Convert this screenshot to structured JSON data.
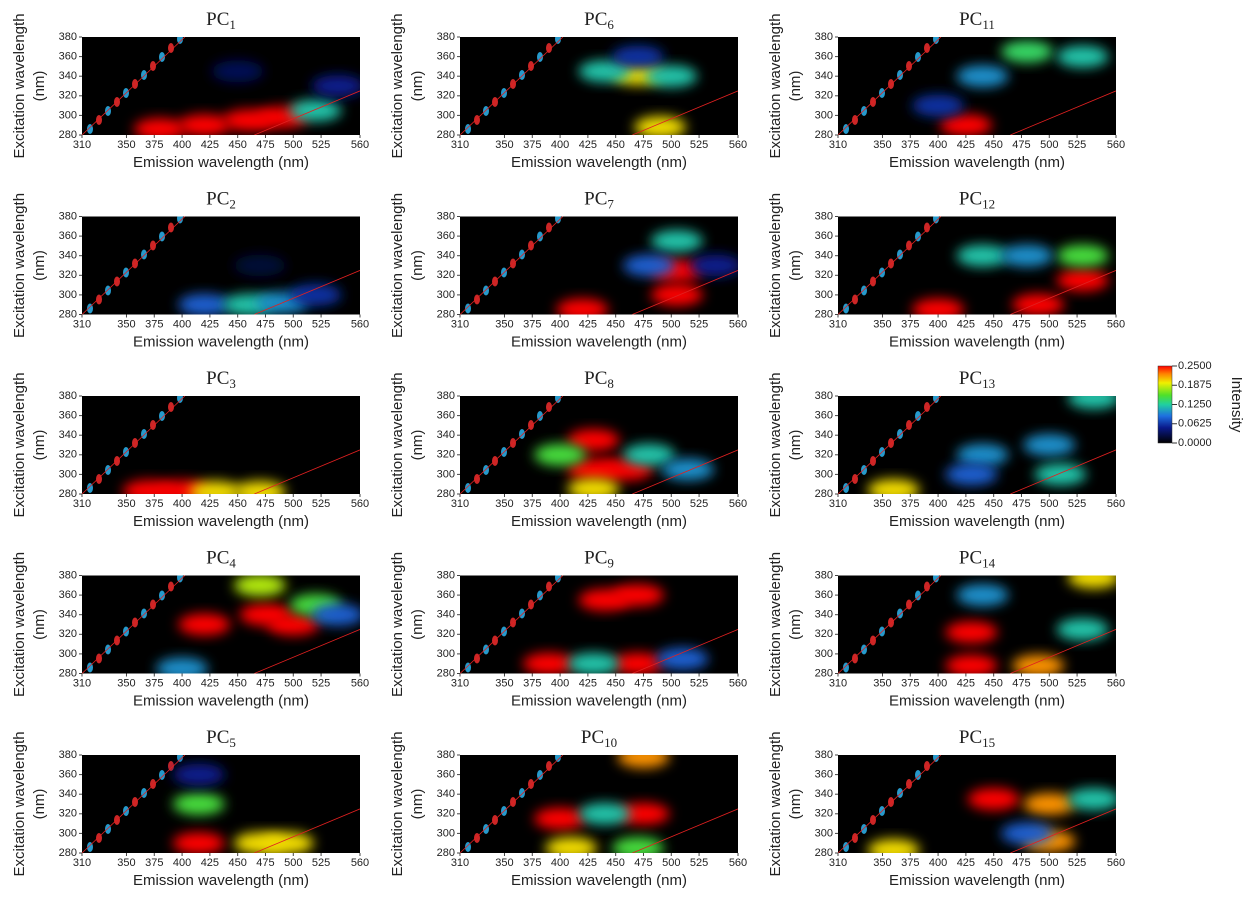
{
  "chart_data": [
    {
      "type": "heatmap",
      "title": "PC",
      "title_sub": "1",
      "xlabel": "Emission wavelength (nm)",
      "ylabel": "Excitation wavelength",
      "ylabel_unit": "(nm)",
      "xlim": [
        310,
        560
      ],
      "ylim": [
        280,
        380
      ],
      "xticks": [
        310,
        350,
        375,
        400,
        425,
        450,
        475,
        500,
        525,
        560
      ],
      "yticks": [
        280,
        300,
        320,
        340,
        360,
        380
      ],
      "x": [
        380,
        420,
        460,
        490,
        520,
        450,
        540
      ],
      "y": [
        286,
        290,
        295,
        298,
        305,
        345,
        330
      ],
      "values": [
        0.25,
        0.25,
        0.25,
        0.25,
        0.12,
        0.03,
        0.05
      ]
    },
    {
      "type": "heatmap",
      "title": "PC",
      "title_sub": "2",
      "xlabel": "Emission wavelength (nm)",
      "ylabel": "Excitation wavelength",
      "ylabel_unit": "(nm)",
      "xlim": [
        310,
        560
      ],
      "ylim": [
        280,
        380
      ],
      "xticks": [
        310,
        350,
        375,
        400,
        425,
        450,
        475,
        500,
        525,
        560
      ],
      "yticks": [
        280,
        300,
        320,
        340,
        360,
        380
      ],
      "x": [
        420,
        460,
        490,
        520,
        470
      ],
      "y": [
        290,
        290,
        292,
        300,
        330
      ],
      "values": [
        0.08,
        0.12,
        0.1,
        0.06,
        0.02
      ]
    },
    {
      "type": "heatmap",
      "title": "PC",
      "title_sub": "3",
      "xlabel": "Emission wavelength (nm)",
      "ylabel": "Excitation wavelength",
      "ylabel_unit": "(nm)",
      "xlim": [
        310,
        560
      ],
      "ylim": [
        280,
        380
      ],
      "xticks": [
        310,
        350,
        375,
        400,
        425,
        450,
        475,
        500,
        525,
        560
      ],
      "yticks": [
        280,
        300,
        320,
        340,
        360,
        380
      ],
      "x": [
        370,
        400,
        430,
        470
      ],
      "y": [
        283,
        283,
        282,
        282
      ],
      "values": [
        0.25,
        0.25,
        0.2,
        0.2
      ]
    },
    {
      "type": "heatmap",
      "title": "PC",
      "title_sub": "4",
      "xlabel": "Emission wavelength (nm)",
      "ylabel": "Excitation wavelength",
      "ylabel_unit": "(nm)",
      "xlim": [
        310,
        560
      ],
      "ylim": [
        280,
        380
      ],
      "xticks": [
        310,
        350,
        375,
        400,
        425,
        450,
        475,
        500,
        525,
        560
      ],
      "yticks": [
        280,
        300,
        320,
        340,
        360,
        380
      ],
      "x": [
        420,
        475,
        500,
        520,
        470,
        540,
        400
      ],
      "y": [
        330,
        340,
        330,
        350,
        370,
        340,
        285
      ],
      "values": [
        0.25,
        0.25,
        0.25,
        0.15,
        0.18,
        0.08,
        0.1
      ]
    },
    {
      "type": "heatmap",
      "title": "PC",
      "title_sub": "5",
      "xlabel": "Emission wavelength (nm)",
      "ylabel": "Excitation wavelength",
      "ylabel_unit": "(nm)",
      "xlim": [
        310,
        560
      ],
      "ylim": [
        280,
        380
      ],
      "xticks": [
        310,
        350,
        375,
        400,
        425,
        450,
        475,
        500,
        525,
        560
      ],
      "yticks": [
        280,
        300,
        320,
        340,
        360,
        380
      ],
      "x": [
        415,
        415,
        470,
        495,
        415
      ],
      "y": [
        290,
        330,
        290,
        290,
        360
      ],
      "values": [
        0.25,
        0.15,
        0.2,
        0.2,
        0.05
      ]
    },
    {
      "type": "heatmap",
      "title": "PC",
      "title_sub": "6",
      "xlabel": "Emission wavelength (nm)",
      "ylabel": "Excitation wavelength",
      "ylabel_unit": "(nm)",
      "xlim": [
        310,
        560
      ],
      "ylim": [
        280,
        380
      ],
      "xticks": [
        310,
        350,
        375,
        400,
        425,
        450,
        475,
        500,
        525,
        560
      ],
      "yticks": [
        280,
        300,
        320,
        340,
        360,
        380
      ],
      "x": [
        470,
        440,
        500,
        470,
        490
      ],
      "y": [
        342,
        345,
        340,
        360,
        288
      ],
      "values": [
        0.2,
        0.12,
        0.12,
        0.06,
        0.2
      ]
    },
    {
      "type": "heatmap",
      "title": "PC",
      "title_sub": "7",
      "xlabel": "Emission wavelength (nm)",
      "ylabel": "Excitation wavelength",
      "ylabel_unit": "(nm)",
      "xlim": [
        310,
        560
      ],
      "ylim": [
        280,
        380
      ],
      "xticks": [
        310,
        350,
        375,
        400,
        425,
        450,
        475,
        500,
        525,
        560
      ],
      "yticks": [
        280,
        300,
        320,
        340,
        360,
        380
      ],
      "x": [
        420,
        505,
        505,
        505,
        480,
        540
      ],
      "y": [
        285,
        300,
        325,
        355,
        330,
        330
      ],
      "values": [
        0.25,
        0.25,
        0.25,
        0.12,
        0.08,
        0.05
      ]
    },
    {
      "type": "heatmap",
      "title": "PC",
      "title_sub": "8",
      "xlabel": "Emission wavelength (nm)",
      "ylabel": "Excitation wavelength",
      "ylabel_unit": "(nm)",
      "xlim": [
        310,
        560
      ],
      "ylim": [
        280,
        380
      ],
      "xticks": [
        310,
        350,
        375,
        400,
        425,
        450,
        475,
        500,
        525,
        560
      ],
      "yticks": [
        280,
        300,
        320,
        340,
        360,
        380
      ],
      "x": [
        430,
        430,
        460,
        430,
        400,
        480,
        515
      ],
      "y": [
        335,
        305,
        305,
        285,
        320,
        320,
        305
      ],
      "values": [
        0.25,
        0.25,
        0.25,
        0.2,
        0.15,
        0.12,
        0.1
      ]
    },
    {
      "type": "heatmap",
      "title": "PC",
      "title_sub": "9",
      "xlabel": "Emission wavelength (nm)",
      "ylabel": "Excitation wavelength",
      "ylabel_unit": "(nm)",
      "xlim": [
        310,
        560
      ],
      "ylim": [
        280,
        380
      ],
      "xticks": [
        310,
        350,
        375,
        400,
        425,
        450,
        475,
        500,
        525,
        560
      ],
      "yticks": [
        280,
        300,
        320,
        340,
        360,
        380
      ],
      "x": [
        440,
        470,
        390,
        470,
        430,
        510
      ],
      "y": [
        355,
        360,
        290,
        290,
        290,
        295
      ],
      "values": [
        0.25,
        0.25,
        0.25,
        0.25,
        0.12,
        0.08
      ]
    },
    {
      "type": "heatmap",
      "title": "PC",
      "title_sub": "10",
      "xlabel": "Emission wavelength (nm)",
      "ylabel": "Excitation wavelength",
      "ylabel_unit": "(nm)",
      "xlim": [
        310,
        560
      ],
      "ylim": [
        280,
        380
      ],
      "xticks": [
        310,
        350,
        375,
        400,
        425,
        450,
        475,
        500,
        525,
        560
      ],
      "yticks": [
        280,
        300,
        320,
        340,
        360,
        380
      ],
      "x": [
        400,
        475,
        440,
        475,
        410,
        470
      ],
      "y": [
        315,
        320,
        320,
        378,
        285,
        285
      ],
      "values": [
        0.25,
        0.25,
        0.12,
        0.22,
        0.2,
        0.15
      ]
    },
    {
      "type": "heatmap",
      "title": "PC",
      "title_sub": "11",
      "xlabel": "Emission wavelength (nm)",
      "ylabel": "Excitation wavelength",
      "ylabel_unit": "(nm)",
      "xlim": [
        310,
        560
      ],
      "ylim": [
        280,
        380
      ],
      "xticks": [
        310,
        350,
        375,
        400,
        425,
        450,
        475,
        500,
        525,
        560
      ],
      "yticks": [
        280,
        300,
        320,
        340,
        360,
        380
      ],
      "x": [
        425,
        480,
        530,
        440,
        400
      ],
      "y": [
        290,
        365,
        360,
        340,
        310
      ],
      "values": [
        0.25,
        0.14,
        0.12,
        0.1,
        0.06
      ]
    },
    {
      "type": "heatmap",
      "title": "PC",
      "title_sub": "12",
      "xlabel": "Emission wavelength (nm)",
      "ylabel": "Excitation wavelength",
      "ylabel_unit": "(nm)",
      "xlim": [
        310,
        560
      ],
      "ylim": [
        280,
        380
      ],
      "xticks": [
        310,
        350,
        375,
        400,
        425,
        450,
        475,
        500,
        525,
        560
      ],
      "yticks": [
        280,
        300,
        320,
        340,
        360,
        380
      ],
      "x": [
        400,
        490,
        530,
        530,
        440,
        480
      ],
      "y": [
        285,
        290,
        315,
        340,
        340,
        340
      ],
      "values": [
        0.25,
        0.25,
        0.25,
        0.15,
        0.12,
        0.1
      ]
    },
    {
      "type": "heatmap",
      "title": "PC",
      "title_sub": "13",
      "xlabel": "Emission wavelength (nm)",
      "ylabel": "Excitation wavelength",
      "ylabel_unit": "(nm)",
      "xlim": [
        310,
        560
      ],
      "ylim": [
        280,
        380
      ],
      "xticks": [
        310,
        350,
        375,
        400,
        425,
        450,
        475,
        500,
        525,
        560
      ],
      "yticks": [
        280,
        300,
        320,
        340,
        360,
        380
      ],
      "x": [
        540,
        440,
        500,
        510,
        430,
        360
      ],
      "y": [
        378,
        320,
        330,
        300,
        300,
        284
      ],
      "values": [
        0.12,
        0.1,
        0.1,
        0.12,
        0.08,
        0.2
      ]
    },
    {
      "type": "heatmap",
      "title": "PC",
      "title_sub": "14",
      "xlabel": "Emission wavelength (nm)",
      "ylabel": "Excitation wavelength",
      "ylabel_unit": "(nm)",
      "xlim": [
        310,
        560
      ],
      "ylim": [
        280,
        380
      ],
      "xticks": [
        310,
        350,
        375,
        400,
        425,
        450,
        475,
        500,
        525,
        560
      ],
      "yticks": [
        280,
        300,
        320,
        340,
        360,
        380
      ],
      "x": [
        430,
        430,
        490,
        530,
        440,
        540
      ],
      "y": [
        322,
        288,
        288,
        325,
        360,
        378
      ],
      "values": [
        0.25,
        0.25,
        0.22,
        0.12,
        0.1,
        0.2
      ]
    },
    {
      "type": "heatmap",
      "title": "PC",
      "title_sub": "15",
      "xlabel": "Emission wavelength (nm)",
      "ylabel": "Excitation wavelength",
      "ylabel_unit": "(nm)",
      "xlim": [
        310,
        560
      ],
      "ylim": [
        280,
        380
      ],
      "xticks": [
        310,
        350,
        375,
        400,
        425,
        450,
        475,
        500,
        525,
        560
      ],
      "yticks": [
        280,
        300,
        320,
        340,
        360,
        380
      ],
      "x": [
        450,
        500,
        540,
        500,
        360,
        480
      ],
      "y": [
        335,
        330,
        335,
        292,
        283,
        300
      ],
      "values": [
        0.25,
        0.22,
        0.12,
        0.22,
        0.2,
        0.08
      ]
    },
    {
      "type": "colorbar",
      "label": "Intensity",
      "lim": [
        0,
        0.25
      ],
      "ticks": [
        {
          "value": 0.25,
          "label": "0.2500"
        },
        {
          "value": 0.1875,
          "label": "0.1875"
        },
        {
          "value": 0.125,
          "label": "0.1250"
        },
        {
          "value": 0.0625,
          "label": "0.0625"
        },
        {
          "value": 0,
          "label": "0.0000"
        }
      ]
    }
  ]
}
